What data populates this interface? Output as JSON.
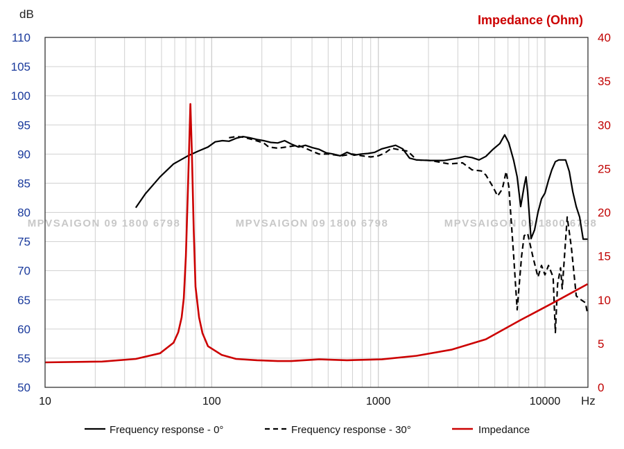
{
  "chart_data": {
    "type": "line",
    "title": "",
    "xlabel": "Hz",
    "ylabel": "dB",
    "y2label": "Impedance (Ohm)",
    "x_scale": "log",
    "xlim": [
      10,
      18000
    ],
    "ylim": [
      50,
      110
    ],
    "y2lim": [
      0,
      40
    ],
    "grid": true,
    "legend_position": "bottom",
    "x_ticks": [
      "10",
      "100",
      "1000",
      "10000"
    ],
    "y_ticks": [
      "50",
      "55",
      "60",
      "65",
      "70",
      "75",
      "80",
      "85",
      "90",
      "95",
      "100",
      "105",
      "110"
    ],
    "y2_ticks": [
      "0",
      "5",
      "10",
      "15",
      "20",
      "25",
      "30",
      "35",
      "40"
    ],
    "colors": {
      "y_axis_labels": "#1a3a9c",
      "y2_axis_labels": "#c00000",
      "fr0": "#000000",
      "fr30": "#000000",
      "impedance": "#cc0000"
    },
    "watermark": "MPVSAIGON 09 1800 6798",
    "series": [
      {
        "name": "Frequency response - 0°",
        "axis": "left",
        "style": "solid",
        "x": [
          35,
          40,
          49,
          59,
          72,
          83,
          95,
          105,
          116,
          127,
          140,
          154,
          169,
          187,
          205,
          226,
          249,
          274,
          301,
          332,
          365,
          402,
          442,
          487,
          536,
          590,
          649,
          715,
          787,
          866,
          953,
          1050,
          1155,
          1270,
          1400,
          1540,
          1695,
          2055,
          2490,
          3010,
          3320,
          3650,
          4020,
          4420,
          4870,
          5360,
          5730,
          6070,
          6490,
          6810,
          7150,
          7500,
          7700,
          7870,
          8250,
          8660,
          9080,
          9530,
          10000,
          10500,
          11000,
          11550,
          12100,
          13300,
          14000,
          14700,
          15400,
          16150,
          16950,
          18000
        ],
        "y": [
          80.8,
          83.2,
          86.1,
          88.3,
          89.7,
          90.5,
          91.2,
          92.1,
          92.3,
          92.2,
          92.7,
          93.0,
          92.8,
          92.5,
          92.3,
          92.0,
          91.9,
          92.3,
          91.7,
          91.2,
          91.5,
          91.1,
          90.8,
          90.2,
          90.0,
          89.7,
          90.3,
          89.8,
          90.0,
          90.1,
          90.3,
          90.9,
          91.2,
          91.5,
          90.9,
          89.3,
          89.0,
          88.9,
          88.9,
          89.3,
          89.6,
          89.4,
          89.0,
          89.6,
          90.8,
          91.8,
          93.3,
          91.9,
          88.9,
          86.1,
          81.0,
          84.5,
          86.1,
          83.5,
          75.5,
          77.0,
          80.0,
          82.3,
          83.3,
          85.5,
          87.3,
          88.7,
          89.0,
          89.0,
          87.0,
          83.5,
          81.0,
          79.2,
          75.4,
          75.4
        ]
      },
      {
        "name": "Frequency response - 30°",
        "axis": "left",
        "style": "dashed",
        "x": [
          127,
          140,
          154,
          180,
          205,
          220,
          250,
          280,
          330,
          365,
          400,
          440,
          500,
          600,
          700,
          800,
          900,
          1000,
          1100,
          1200,
          1300,
          1500,
          1700,
          2055,
          2660,
          3200,
          3650,
          4150,
          4420,
          4870,
          5200,
          5550,
          5850,
          6070,
          6490,
          6810,
          7240,
          7500,
          7870,
          8450,
          9080,
          9530,
          10000,
          10500,
          11200,
          11550,
          11900,
          12400,
          12700,
          13600,
          14400,
          15400,
          15900,
          17500,
          18000
        ],
        "y": [
          92.8,
          93.0,
          92.9,
          92.4,
          91.9,
          91.2,
          91.0,
          91.2,
          91.5,
          91.0,
          90.5,
          90.0,
          90.0,
          89.7,
          90.0,
          89.7,
          89.5,
          89.7,
          90.2,
          91.0,
          90.8,
          90.5,
          89.0,
          88.9,
          88.3,
          88.5,
          87.3,
          87.1,
          86.4,
          84.4,
          82.8,
          84.0,
          87.0,
          84.4,
          72.5,
          63.3,
          72.5,
          76.0,
          76.4,
          72.5,
          68.9,
          70.9,
          69.3,
          70.9,
          68.9,
          59.4,
          67.7,
          70.5,
          66.9,
          79.2,
          74.0,
          65.7,
          65.3,
          64.5,
          62.6
        ]
      },
      {
        "name": "Impedance",
        "axis": "right",
        "style": "solid",
        "x": [
          10,
          22,
          35,
          49,
          59,
          63,
          66,
          68,
          70,
          72,
          74.5,
          76,
          78,
          80,
          84,
          88,
          95,
          115,
          140,
          187,
          249,
          301,
          442,
          649,
          1050,
          1695,
          2740,
          4420,
          7150,
          11550,
          18000
        ],
        "y": [
          2.85,
          2.95,
          3.25,
          3.9,
          5.1,
          6.3,
          8.0,
          10.2,
          15.0,
          22.5,
          32.4,
          27.0,
          18.0,
          11.5,
          8.0,
          6.2,
          4.7,
          3.7,
          3.25,
          3.1,
          3.0,
          3.0,
          3.2,
          3.1,
          3.2,
          3.6,
          4.3,
          5.5,
          7.7,
          9.8,
          11.8
        ]
      }
    ]
  }
}
